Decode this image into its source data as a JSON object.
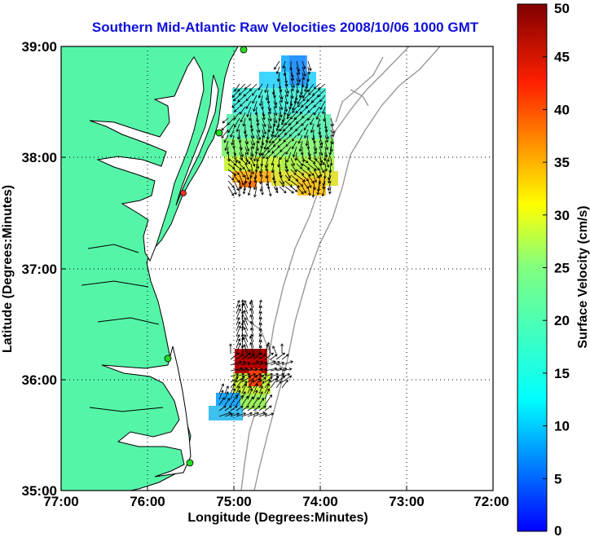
{
  "title": "Southern Mid-Atlantic Raw Velocities 2008/10/06 1000 GMT",
  "xlabel": "Longitude (Degrees:Minutes)",
  "ylabel": "Latitude (Degrees:Minutes)",
  "colorbar": {
    "label": "Surface Velocity (cm/s)",
    "min": 0,
    "max": 50,
    "ticks": [
      "0",
      "5",
      "10",
      "15",
      "20",
      "25",
      "30",
      "35",
      "40",
      "45",
      "50"
    ],
    "colormap": "jet"
  },
  "map": {
    "x_ticks": [
      "77:00",
      "76:00",
      "75:00",
      "74:00",
      "73:00",
      "72:00"
    ],
    "y_ticks": [
      "39:00",
      "38:00",
      "37:00",
      "36:00",
      "35:00"
    ],
    "lon_range": [
      -77,
      -72
    ],
    "lat_range": [
      35,
      39
    ],
    "grid": true,
    "land_color": "#55f5a8",
    "ocean_color": "#ffffff",
    "bathymetry_color": "#999999",
    "station_color": "#22dd22"
  }
}
